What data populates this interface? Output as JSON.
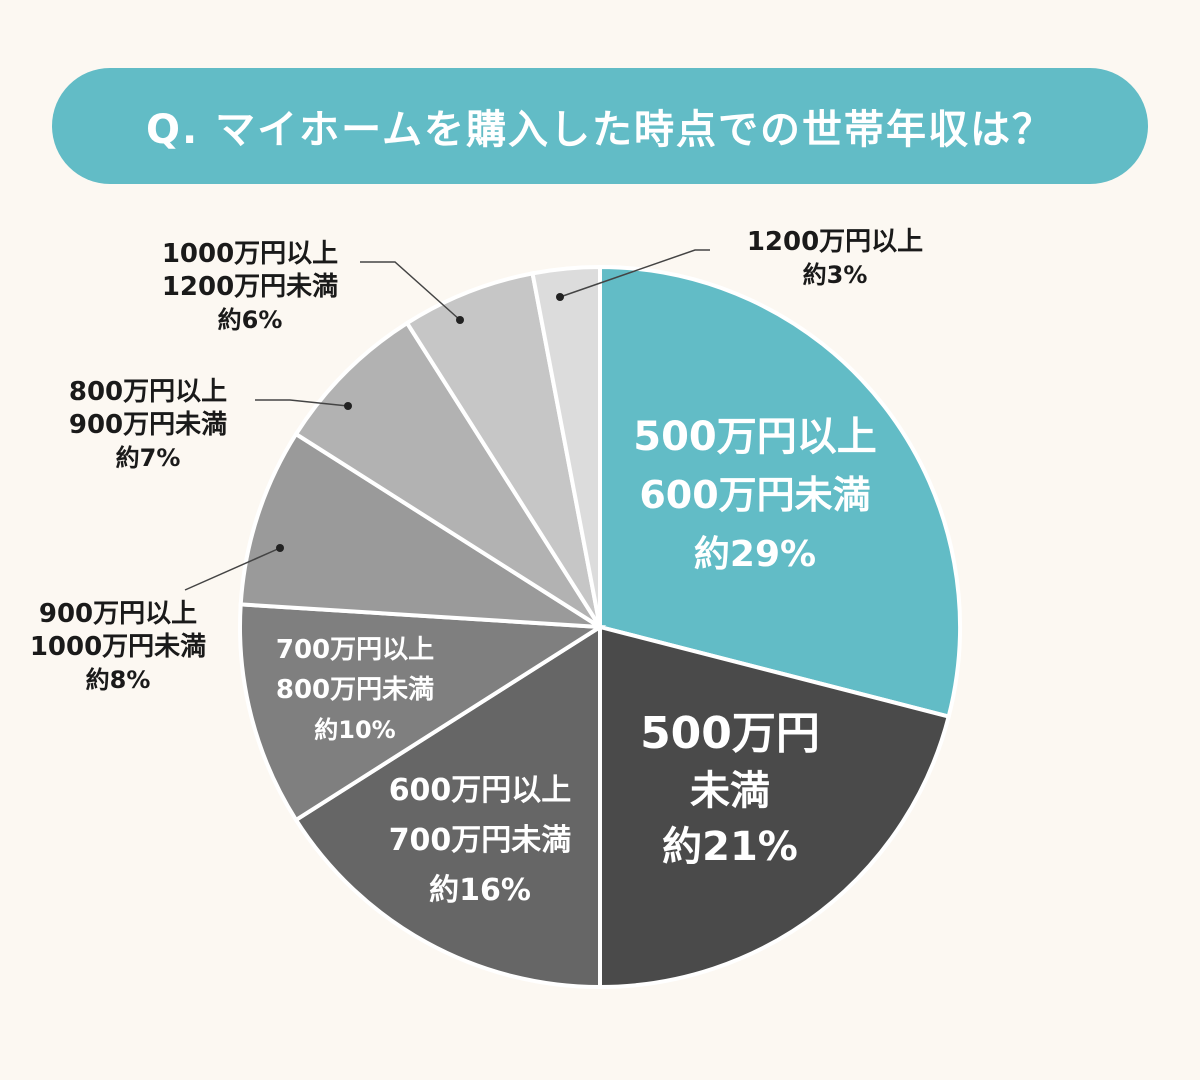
{
  "title": "Q. マイホームを購入した時点での世帯年収は？",
  "colors": {
    "background": "#fcf8f2",
    "title_bg": "#62bcc6",
    "accent": "#62bcc6",
    "slice_stroke": "#ffffff"
  },
  "chart_data": {
    "type": "pie",
    "title": "Q. マイホームを購入した時点での世帯年収は？",
    "start_angle_deg": 0,
    "direction": "clockwise",
    "slices": [
      {
        "lines": [
          "500万円以上",
          "600万円未満"
        ],
        "value_label": "約29%",
        "value": 29,
        "color": "#62bcc6",
        "text_color": "#ffffff",
        "label_inside": true
      },
      {
        "lines": [
          "500万円",
          "未満"
        ],
        "value_label": "約21%",
        "value": 21,
        "color": "#4a4a4a",
        "text_color": "#ffffff",
        "label_inside": true
      },
      {
        "lines": [
          "600万円以上",
          "700万円未満"
        ],
        "value_label": "約16%",
        "value": 16,
        "color": "#666666",
        "text_color": "#ffffff",
        "label_inside": true
      },
      {
        "lines": [
          "700万円以上",
          "800万円未満"
        ],
        "value_label": "約10%",
        "value": 10,
        "color": "#7f7f7f",
        "text_color": "#ffffff",
        "label_inside": true
      },
      {
        "lines": [
          "900万円以上",
          "1000万円未満"
        ],
        "value_label": "約8%",
        "value": 8,
        "color": "#9a9a9a",
        "text_color": "#1a1a1a",
        "label_inside": false
      },
      {
        "lines": [
          "800万円以上",
          "900万円未満"
        ],
        "value_label": "約7%",
        "value": 7,
        "color": "#b2b2b2",
        "text_color": "#1a1a1a",
        "label_inside": false
      },
      {
        "lines": [
          "1000万円以上",
          "1200万円未満"
        ],
        "value_label": "約6%",
        "value": 6,
        "color": "#c6c6c6",
        "text_color": "#1a1a1a",
        "label_inside": false
      },
      {
        "lines": [
          "1200万円以上"
        ],
        "value_label": "約3%",
        "value": 3,
        "color": "#dcdcdc",
        "text_color": "#1a1a1a",
        "label_inside": false
      }
    ]
  }
}
